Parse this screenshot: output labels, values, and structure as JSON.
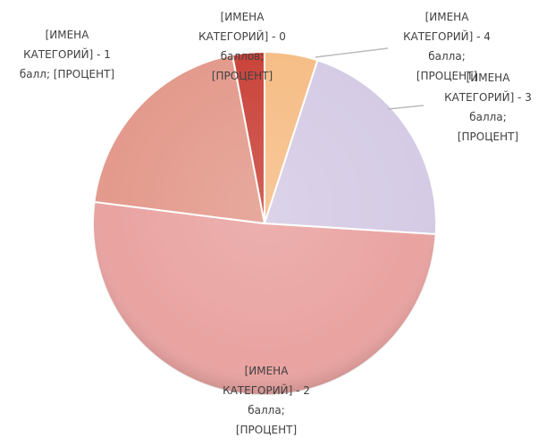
{
  "chart_data": {
    "type": "pie",
    "categories": [
      "[ИМЕНА КАТЕГОРИЙ] - 4 балла; [ПРОЦЕНТ]",
      "[ИМЕНА КАТЕГОРИЙ] - 3 балла; [ПРОЦЕНТ]",
      "[ИМЕНА КАТЕГОРИЙ] - 2 балла; [ПРОЦЕНТ]",
      "[ИМЕНА КАТЕГОРИЙ] - 1 балл; [ПРОЦЕНТ]",
      "[ИМЕНА КАТЕГОРИЙ] - 0 баллов; [ПРОЦЕНТ]"
    ],
    "values": [
      5,
      21,
      51,
      20,
      3
    ],
    "colors": [
      "#f6bd86",
      "#d5cbe5",
      "#e9a3a1",
      "#e39a8c",
      "#c9433a"
    ]
  }
}
